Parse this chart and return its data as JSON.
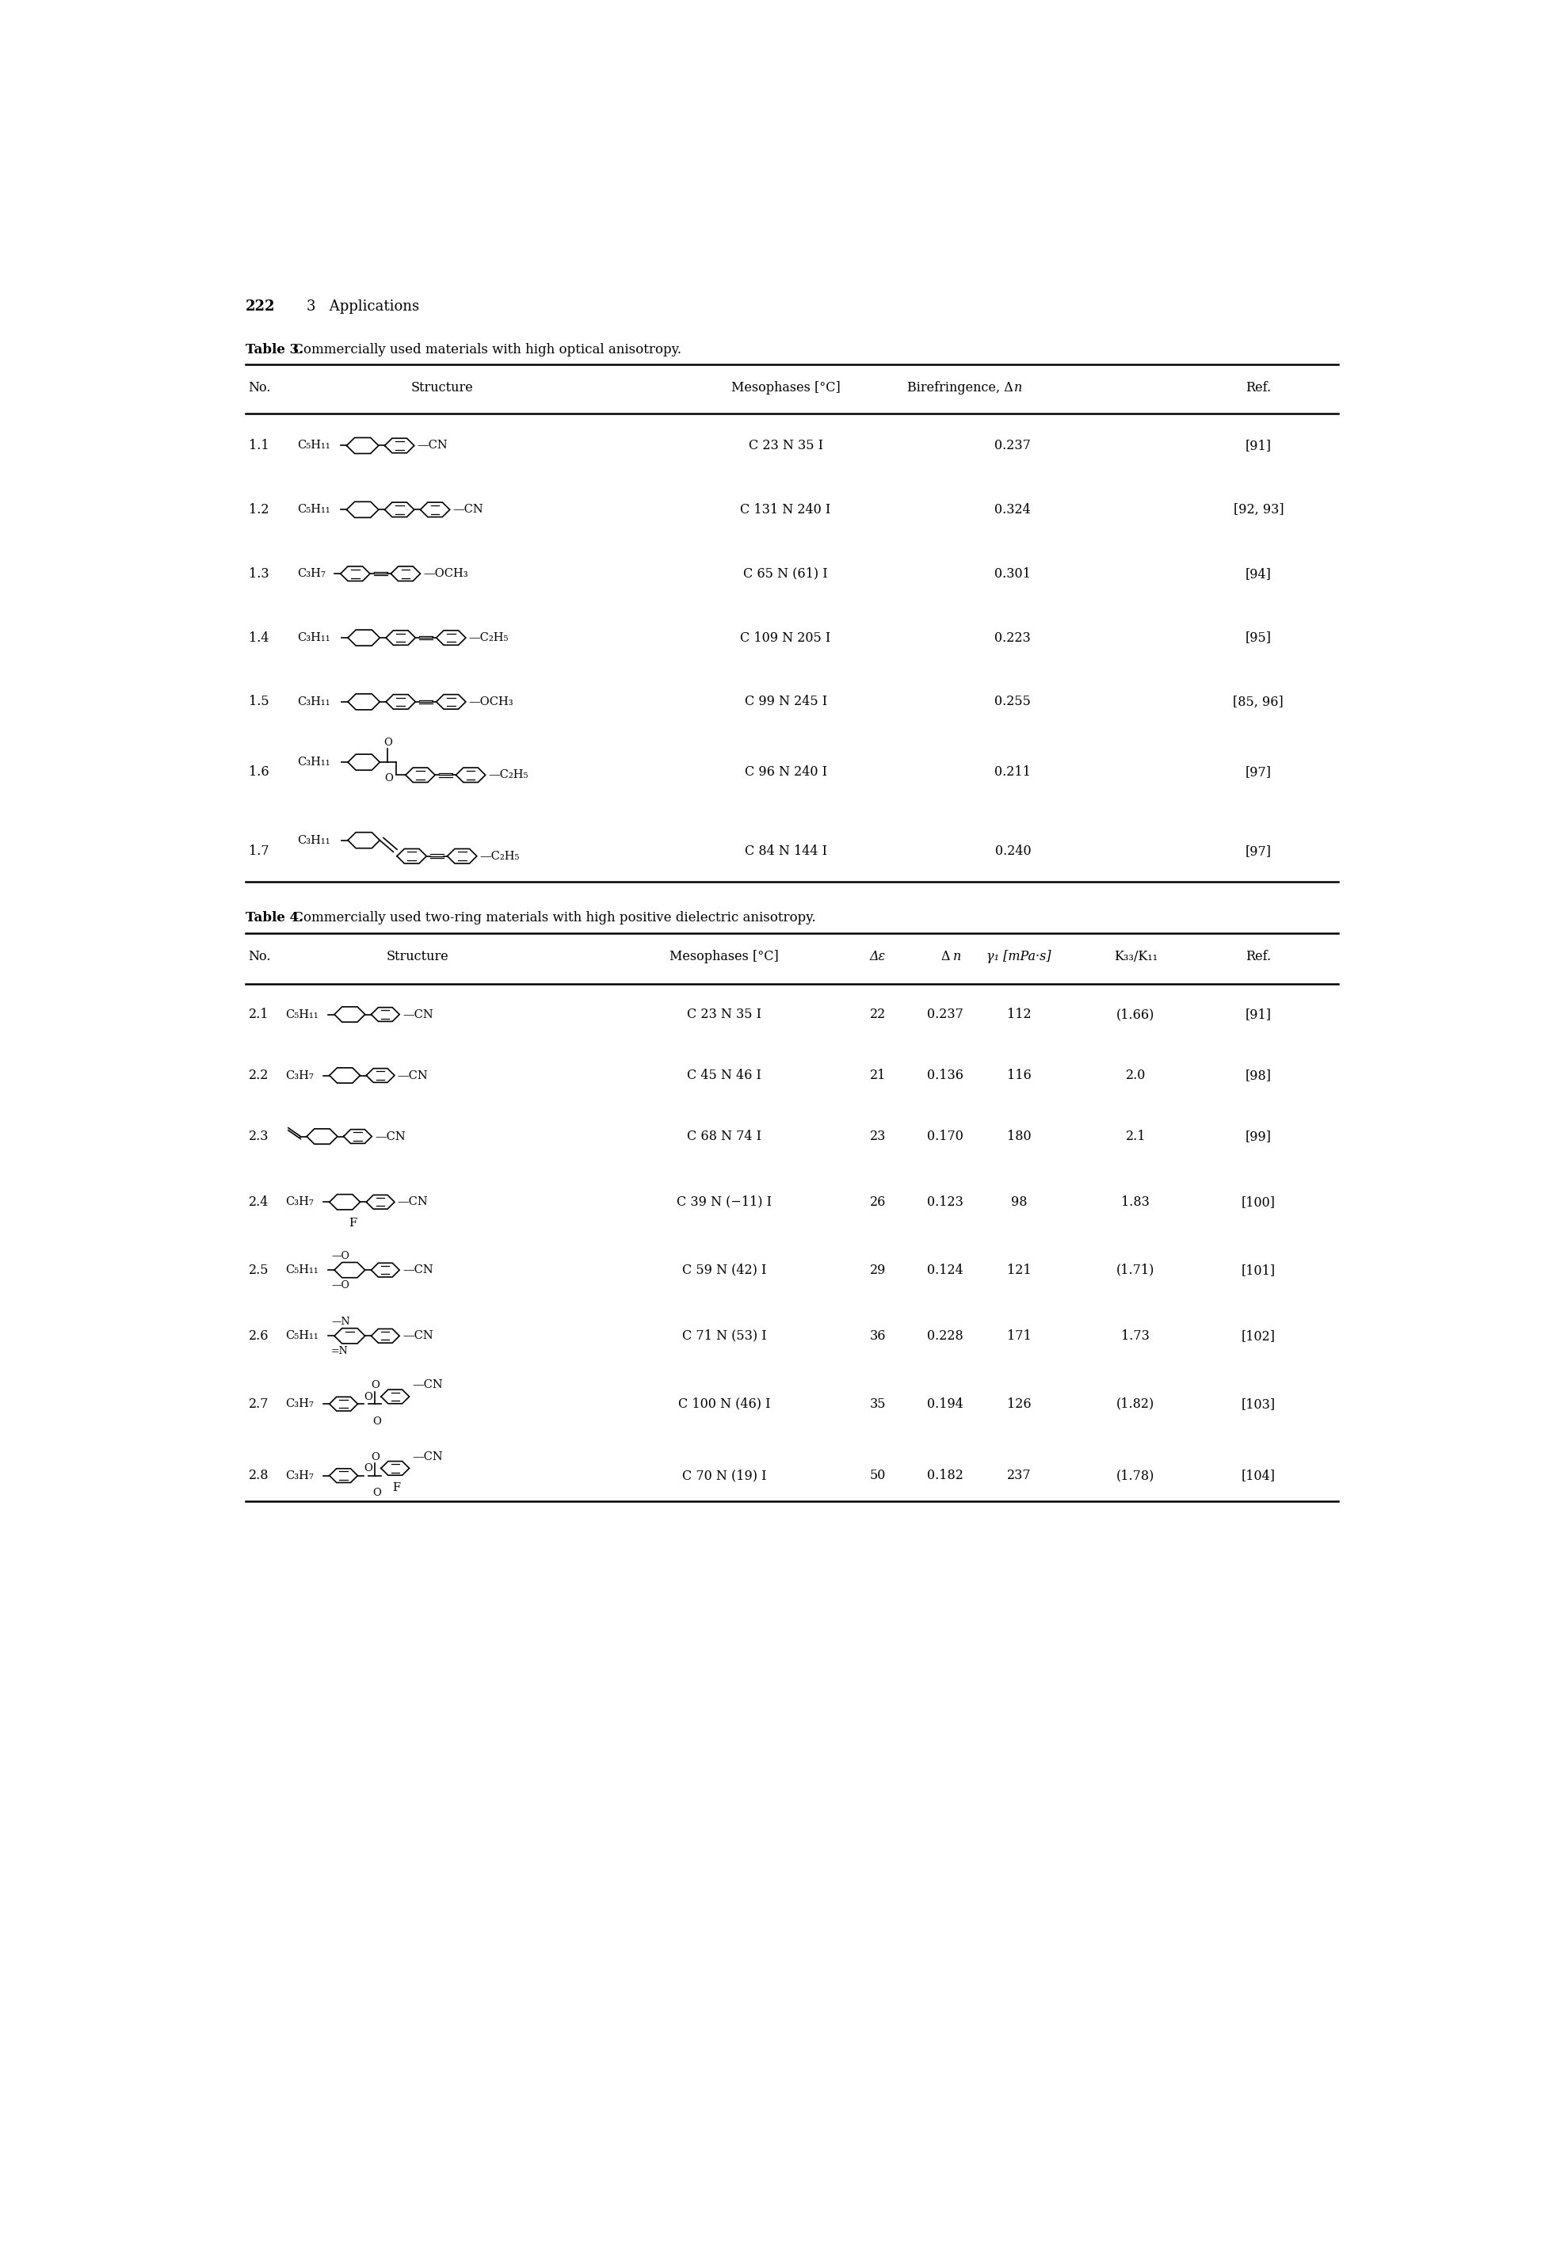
{
  "page_number": "222",
  "chapter": "3   Applications",
  "table3_title": "Table 3.",
  "table3_title_rest": " Commercially used materials with high optical anisotropy.",
  "table3_rows": [
    {
      "no": "1.1",
      "mesophases": "C 23 N 35 I",
      "biref": "0.237",
      "ref": "[91]"
    },
    {
      "no": "1.2",
      "mesophases": "C 131 N 240 I",
      "biref": "0.324",
      "ref": "[92, 93]"
    },
    {
      "no": "1.3",
      "mesophases": "C 65 N (61) I",
      "biref": "0.301",
      "ref": "[94]"
    },
    {
      "no": "1.4",
      "mesophases": "C 109 N 205 I",
      "biref": "0.223",
      "ref": "[95]"
    },
    {
      "no": "1.5",
      "mesophases": "C 99 N 245 I",
      "biref": "0.255",
      "ref": "[85, 96]"
    },
    {
      "no": "1.6",
      "mesophases": "C 96 N 240 I",
      "biref": "0.211",
      "ref": "[97]"
    },
    {
      "no": "1.7",
      "mesophases": "C 84 N 144 I",
      "biref": "0.240",
      "ref": "[97]"
    }
  ],
  "table4_title": "Table 4.",
  "table4_title_rest": " Commercially used two-ring materials with high positive dielectric anisotropy.",
  "table4_rows": [
    {
      "no": "2.1",
      "formula": "C₅H₁₁",
      "mesophases": "C 23 N 35 I",
      "de": "22",
      "dn": "0.237",
      "gamma": "112",
      "k": "(1.66)",
      "ref": "[91]"
    },
    {
      "no": "2.2",
      "formula": "C₃H₇",
      "mesophases": "C 45 N 46 I",
      "de": "21",
      "dn": "0.136",
      "gamma": "116",
      "k": "2.0",
      "ref": "[98]"
    },
    {
      "no": "2.3",
      "formula": "",
      "mesophases": "C 68 N 74 I",
      "de": "23",
      "dn": "0.170",
      "gamma": "180",
      "k": "2.1",
      "ref": "[99]"
    },
    {
      "no": "2.4",
      "formula": "C₃H₇",
      "mesophases": "C 39 N (−11) I",
      "de": "26",
      "dn": "0.123",
      "gamma": "98",
      "k": "1.83",
      "ref": "[100]"
    },
    {
      "no": "2.5",
      "formula": "C₅H₁₁",
      "mesophases": "C 59 N (42) I",
      "de": "29",
      "dn": "0.124",
      "gamma": "121",
      "k": "(1.71)",
      "ref": "[101]"
    },
    {
      "no": "2.6",
      "formula": "C₅H₁₁",
      "mesophases": "C 71 N (53) I",
      "de": "36",
      "dn": "0.228",
      "gamma": "171",
      "k": "1.73",
      "ref": "[102]"
    },
    {
      "no": "2.7",
      "formula": "C₃H₇",
      "mesophases": "C 100 N (46) I",
      "de": "35",
      "dn": "0.194",
      "gamma": "126",
      "k": "(1.82)",
      "ref": "[103]"
    },
    {
      "no": "2.8",
      "formula": "C₃H₇",
      "mesophases": "C 70 N (19) I",
      "de": "50",
      "dn": "0.182",
      "gamma": "237",
      "k": "(1.78)",
      "ref": "[104]"
    }
  ]
}
